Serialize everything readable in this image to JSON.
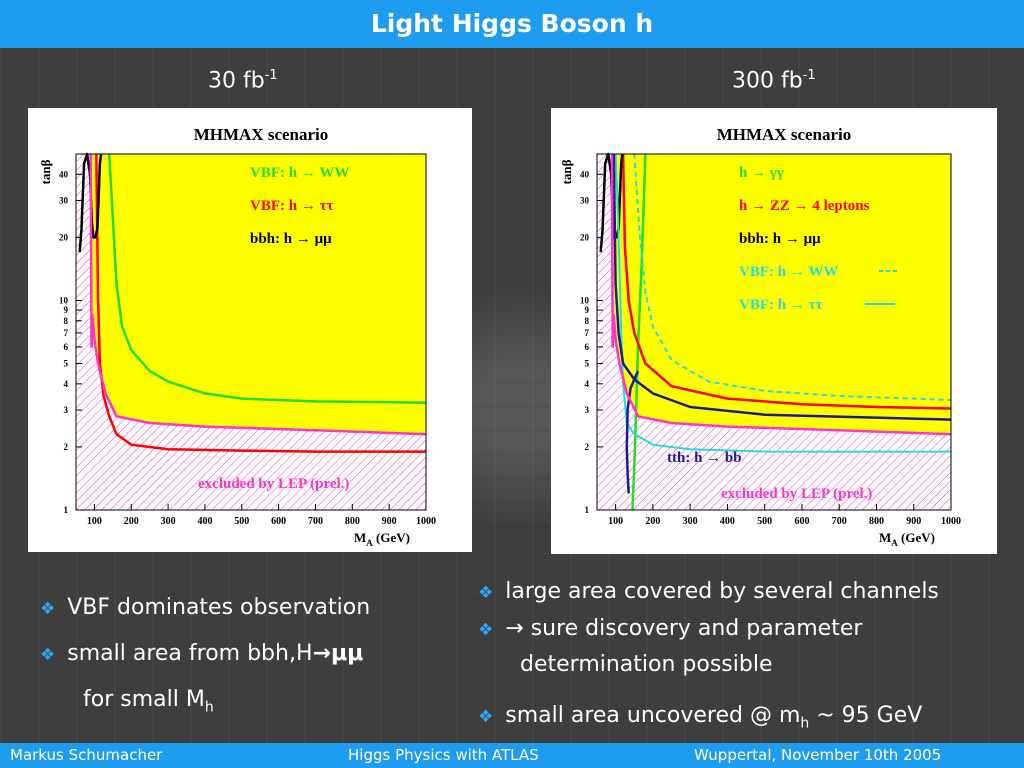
{
  "slide": {
    "title": "Light Higgs Boson h",
    "lumi_left": {
      "value": "30 fb",
      "exp": "-1"
    },
    "lumi_right": {
      "value": "300 fb",
      "exp": "-1"
    }
  },
  "chart_data": [
    {
      "type": "area",
      "title": "MHMAX scenario",
      "xlabel": "M",
      "xlabel_sub": "A",
      "xlabel_unit": "(GeV)",
      "ylabel": "tanβ",
      "xlim": [
        50,
        1000
      ],
      "ylim": [
        1,
        50
      ],
      "yscale": "log",
      "xticks": [
        "100",
        "200",
        "300",
        "400",
        "500",
        "600",
        "700",
        "800",
        "900",
        "1000"
      ],
      "yticks": [
        "1",
        "2",
        "3",
        "4",
        "5",
        "6",
        "7",
        "8",
        "9",
        "10",
        "20",
        "30",
        "40"
      ],
      "background_color": "#ffff00",
      "legend": [
        {
          "label": "VBF: h → WW",
          "color": "#22dd22"
        },
        {
          "label": "VBF: h → ττ",
          "color": "#ff0000"
        },
        {
          "label": "bbh: h → μμ",
          "color": "#000000"
        }
      ],
      "excluded_label": "excluded by LEP (prel.)",
      "series": [
        {
          "name": "VBF: h → WW",
          "color": "#22dd22",
          "x": [
            140,
            150,
            160,
            175,
            200,
            250,
            300,
            400,
            500,
            700,
            1000
          ],
          "y": [
            50,
            25,
            12,
            7.5,
            5.8,
            4.6,
            4.1,
            3.6,
            3.4,
            3.3,
            3.25
          ]
        },
        {
          "name": "VBF: h → ττ",
          "color": "#ff0000",
          "x": [
            105,
            110,
            115,
            125,
            140,
            160,
            200,
            300,
            500,
            700,
            1000
          ],
          "y": [
            50,
            10,
            5,
            3.5,
            2.8,
            2.3,
            2.05,
            1.95,
            1.92,
            1.9,
            1.9
          ]
        },
        {
          "name": "bbh: h → μμ",
          "color": "#000000",
          "x": [
            60,
            65,
            68,
            72,
            80,
            88,
            93,
            97,
            102,
            108,
            115,
            118
          ],
          "y": [
            17,
            22,
            30,
            45,
            50,
            40,
            24,
            20,
            20,
            22,
            45,
            50
          ]
        },
        {
          "name": "LEP boundary",
          "color": "#ff33cc",
          "x": [
            90,
            92,
            95,
            100,
            110,
            130,
            160,
            250,
            400,
            700,
            1000
          ],
          "y": [
            50,
            6,
            8.5,
            6.5,
            5,
            3.6,
            2.8,
            2.6,
            2.5,
            2.4,
            2.3
          ]
        }
      ]
    },
    {
      "type": "area",
      "title": "MHMAX scenario",
      "xlabel": "M",
      "xlabel_sub": "A",
      "xlabel_unit": "(GeV)",
      "ylabel": "tanβ",
      "xlim": [
        50,
        1000
      ],
      "ylim": [
        1,
        50
      ],
      "yscale": "log",
      "xticks": [
        "100",
        "200",
        "300",
        "400",
        "500",
        "600",
        "700",
        "800",
        "900",
        "1000"
      ],
      "yticks": [
        "1",
        "2",
        "3",
        "4",
        "5",
        "6",
        "7",
        "8",
        "9",
        "10",
        "20",
        "30",
        "40"
      ],
      "background_color": "#ffff00",
      "legend": [
        {
          "label": "h → γγ",
          "color": "#22dd22"
        },
        {
          "label": "h → ZZ → 4 leptons",
          "color": "#ff0000"
        },
        {
          "label": "bbh: h → μμ",
          "color": "#000000"
        },
        {
          "label": "VBF: h → WW",
          "color": "#22dddd",
          "line": "- -"
        },
        {
          "label": "VBF: h → ττ",
          "color": "#22dddd",
          "line": "——"
        }
      ],
      "excluded_label": "excluded by LEP (prel.)",
      "extra_label": {
        "label": "tth: h → bb",
        "color": "#1a1a99"
      },
      "series": [
        {
          "name": "h → γγ",
          "color": "#22dd22",
          "x": [
            145,
            150,
            155,
            160,
            170,
            180
          ],
          "y": [
            1,
            1.6,
            3,
            6,
            15,
            50
          ]
        },
        {
          "name": "h → ZZ → 4 leptons",
          "color": "#ff0000",
          "x": [
            120,
            125,
            135,
            150,
            180,
            250,
            400,
            600,
            800,
            1000
          ],
          "y": [
            50,
            18,
            10,
            7,
            5,
            3.9,
            3.4,
            3.2,
            3.1,
            3.05
          ]
        },
        {
          "name": "bbh: h → μμ",
          "color": "#000000",
          "x": [
            60,
            65,
            68,
            72,
            80,
            88,
            93,
            97,
            102,
            108,
            115,
            118
          ],
          "y": [
            17,
            22,
            30,
            45,
            50,
            40,
            24,
            20,
            20,
            22,
            45,
            50
          ]
        },
        {
          "name": "VBF: h → WW",
          "color": "#22dddd",
          "dashed": true,
          "x": [
            150,
            165,
            180,
            200,
            250,
            350,
            500,
            700,
            900,
            1000
          ],
          "y": [
            50,
            20,
            11,
            7.5,
            5.2,
            4.1,
            3.7,
            3.5,
            3.4,
            3.35
          ]
        },
        {
          "name": "VBF: h → ττ",
          "color": "#22dddd",
          "x": [
            100,
            105,
            110,
            115,
            120,
            130,
            150,
            180
          ],
          "y": [
            50,
            30,
            15,
            7,
            4,
            2.6,
            2.3,
            2.15
          ]
        },
        {
          "name": "tth: h → bb",
          "color": "#1a1a99",
          "x": [
            95,
            100,
            108,
            120,
            150,
            200,
            300,
            500,
            1000
          ],
          "y": [
            50,
            12,
            7,
            5,
            4.2,
            3.6,
            3.1,
            2.85,
            2.7
          ]
        },
        {
          "name": "tth: h → bb (low)",
          "color": "#1a1a99",
          "x": [
            135,
            132,
            130,
            132,
            140,
            155,
            160
          ],
          "y": [
            1.2,
            1.5,
            2,
            3,
            3.8,
            4.4,
            4.6
          ]
        },
        {
          "name": "tth: h → bb (outer)",
          "color": "#22dddd",
          "x": [
            170,
            200,
            300,
            500,
            1000
          ],
          "y": [
            2.2,
            2.05,
            1.95,
            1.9,
            1.9
          ]
        },
        {
          "name": "LEP boundary",
          "color": "#ff33cc",
          "x": [
            90,
            92,
            95,
            100,
            110,
            130,
            160,
            250,
            400,
            700,
            1000
          ],
          "y": [
            50,
            6,
            8.5,
            6.5,
            5,
            3.6,
            2.8,
            2.6,
            2.5,
            2.4,
            2.3
          ]
        }
      ]
    }
  ],
  "bullets_left": [
    {
      "text": "VBF dominates observation"
    },
    {
      "text": "small area from bbh,H",
      "suffix": "μμ"
    },
    {
      "text": "for small M",
      "sub": "h"
    }
  ],
  "bullets_right": [
    {
      "text": "large area covered by several channels"
    },
    {
      "text": " sure discovery and parameter"
    },
    {
      "text": "determination possible"
    },
    {
      "text": "small area uncovered @ m",
      "sub": "h",
      "after": " ~ 95 GeV"
    }
  ],
  "footer": {
    "author": "Markus  Schumacher",
    "talk": "Higgs Physics  with ATLAS",
    "place_date": "Wuppertal, November 10th 2005"
  }
}
